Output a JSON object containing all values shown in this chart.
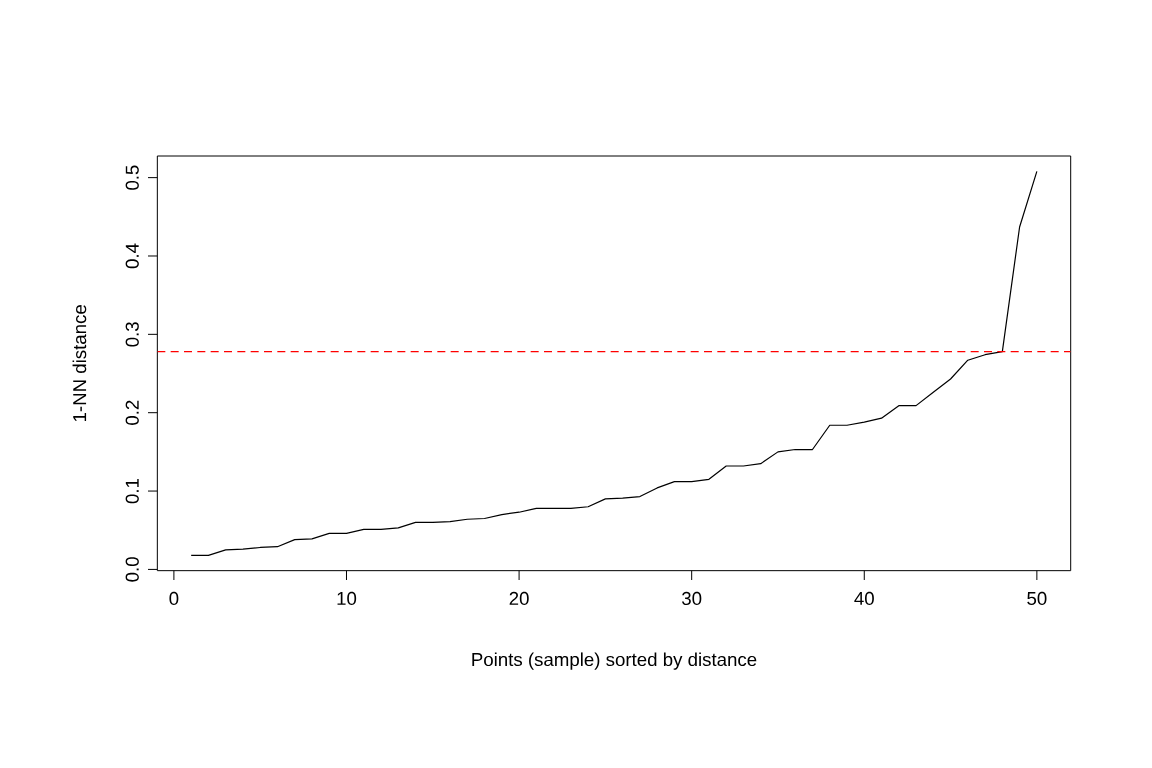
{
  "chart_data": {
    "type": "line",
    "xlabel": "Points (sample) sorted by distance",
    "ylabel": "1-NN distance",
    "x": [
      1,
      2,
      3,
      4,
      5,
      6,
      7,
      8,
      9,
      10,
      11,
      12,
      13,
      14,
      15,
      16,
      17,
      18,
      19,
      20,
      21,
      22,
      23,
      24,
      25,
      26,
      27,
      28,
      29,
      30,
      31,
      32,
      33,
      34,
      35,
      36,
      37,
      38,
      39,
      40,
      41,
      42,
      43,
      44,
      45,
      46,
      47,
      48,
      49,
      50
    ],
    "series": [
      {
        "color": "#000000",
        "values": [
          0.018,
          0.018,
          0.025,
          0.026,
          0.028,
          0.029,
          0.038,
          0.039,
          0.046,
          0.046,
          0.051,
          0.051,
          0.053,
          0.06,
          0.06,
          0.061,
          0.064,
          0.065,
          0.07,
          0.073,
          0.078,
          0.078,
          0.078,
          0.08,
          0.09,
          0.091,
          0.093,
          0.104,
          0.112,
          0.112,
          0.115,
          0.132,
          0.132,
          0.135,
          0.15,
          0.153,
          0.153,
          0.184,
          0.184,
          0.188,
          0.193,
          0.209,
          0.209,
          0.226,
          0.243,
          0.267,
          0.274,
          0.278,
          0.437,
          0.508
        ]
      }
    ],
    "xlim": [
      -0.96,
      51.96
    ],
    "ylim": [
      -0.0016,
      0.5276
    ],
    "xticks": [
      0,
      10,
      20,
      30,
      40,
      50
    ],
    "yticks": [
      {
        "value": 0,
        "label": "0.0"
      },
      {
        "value": 0.1,
        "label": "0.1"
      },
      {
        "value": 0.2,
        "label": "0.2"
      },
      {
        "value": 0.3,
        "label": "0.3"
      },
      {
        "value": 0.4,
        "label": "0.4"
      },
      {
        "value": 0.5,
        "label": "0.5"
      }
    ],
    "ref_lines": [
      {
        "axis": "y",
        "value": 0.278,
        "color": "#ff0000",
        "line_style": "dashed"
      }
    ],
    "marker": "none",
    "line_style": "solid"
  }
}
